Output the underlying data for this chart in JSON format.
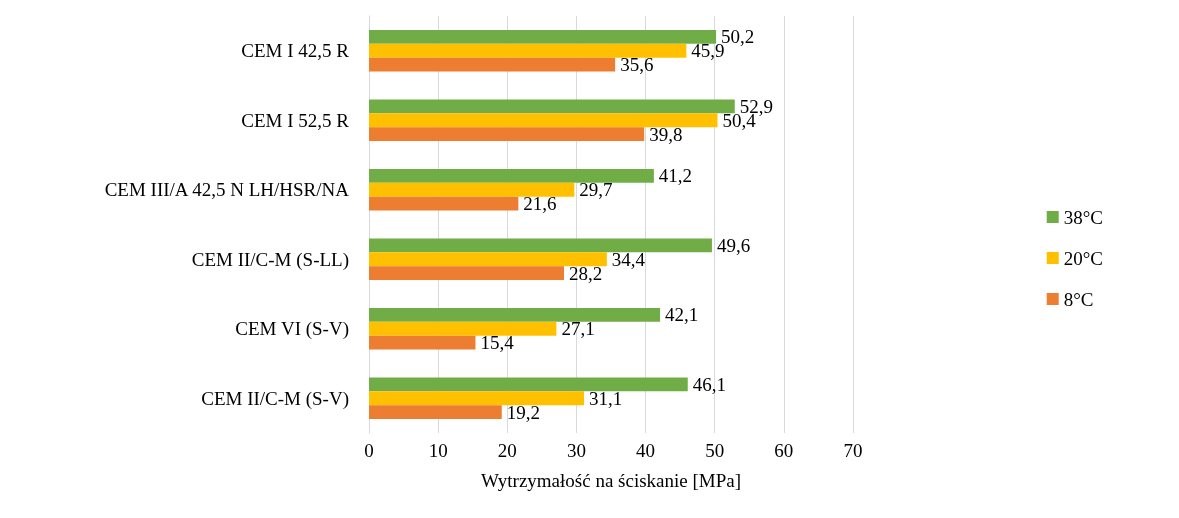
{
  "chart_data": {
    "type": "bar",
    "orientation": "horizontal",
    "xlabel": "Wytrzymałość na ściskanie [MPa]",
    "categories": [
      "CEM I 42,5 R",
      "CEM I 52,5 R",
      "CEM III/A 42,5 N LH/HSR/NA",
      "CEM II/C-M (S-LL)",
      "CEM VI (S-V)",
      "CEM II/C-M (S-V)"
    ],
    "series": [
      {
        "name": "38°C",
        "color": "#70ad47",
        "values": [
          50.2,
          52.9,
          41.2,
          49.6,
          42.1,
          46.1
        ],
        "value_labels": [
          "50,2",
          "52,9",
          "41,2",
          "49,6",
          "42,1",
          "46,1"
        ]
      },
      {
        "name": "20°C",
        "color": "#ffc000",
        "values": [
          45.9,
          50.4,
          29.7,
          34.4,
          27.1,
          31.1
        ],
        "value_labels": [
          "45,9",
          "50,4",
          "29,7",
          "34,4",
          "27,1",
          "31,1"
        ]
      },
      {
        "name": "8°C",
        "color": "#ed7d31",
        "values": [
          35.6,
          39.8,
          21.6,
          28.2,
          15.4,
          19.2
        ],
        "value_labels": [
          "35,6",
          "39,8",
          "21,6",
          "28,2",
          "15,4",
          "19,2"
        ]
      }
    ],
    "xlim": [
      0,
      70
    ],
    "xticks": [
      0,
      10,
      20,
      30,
      40,
      50,
      60,
      70
    ],
    "grid": "x",
    "legend": "right"
  }
}
